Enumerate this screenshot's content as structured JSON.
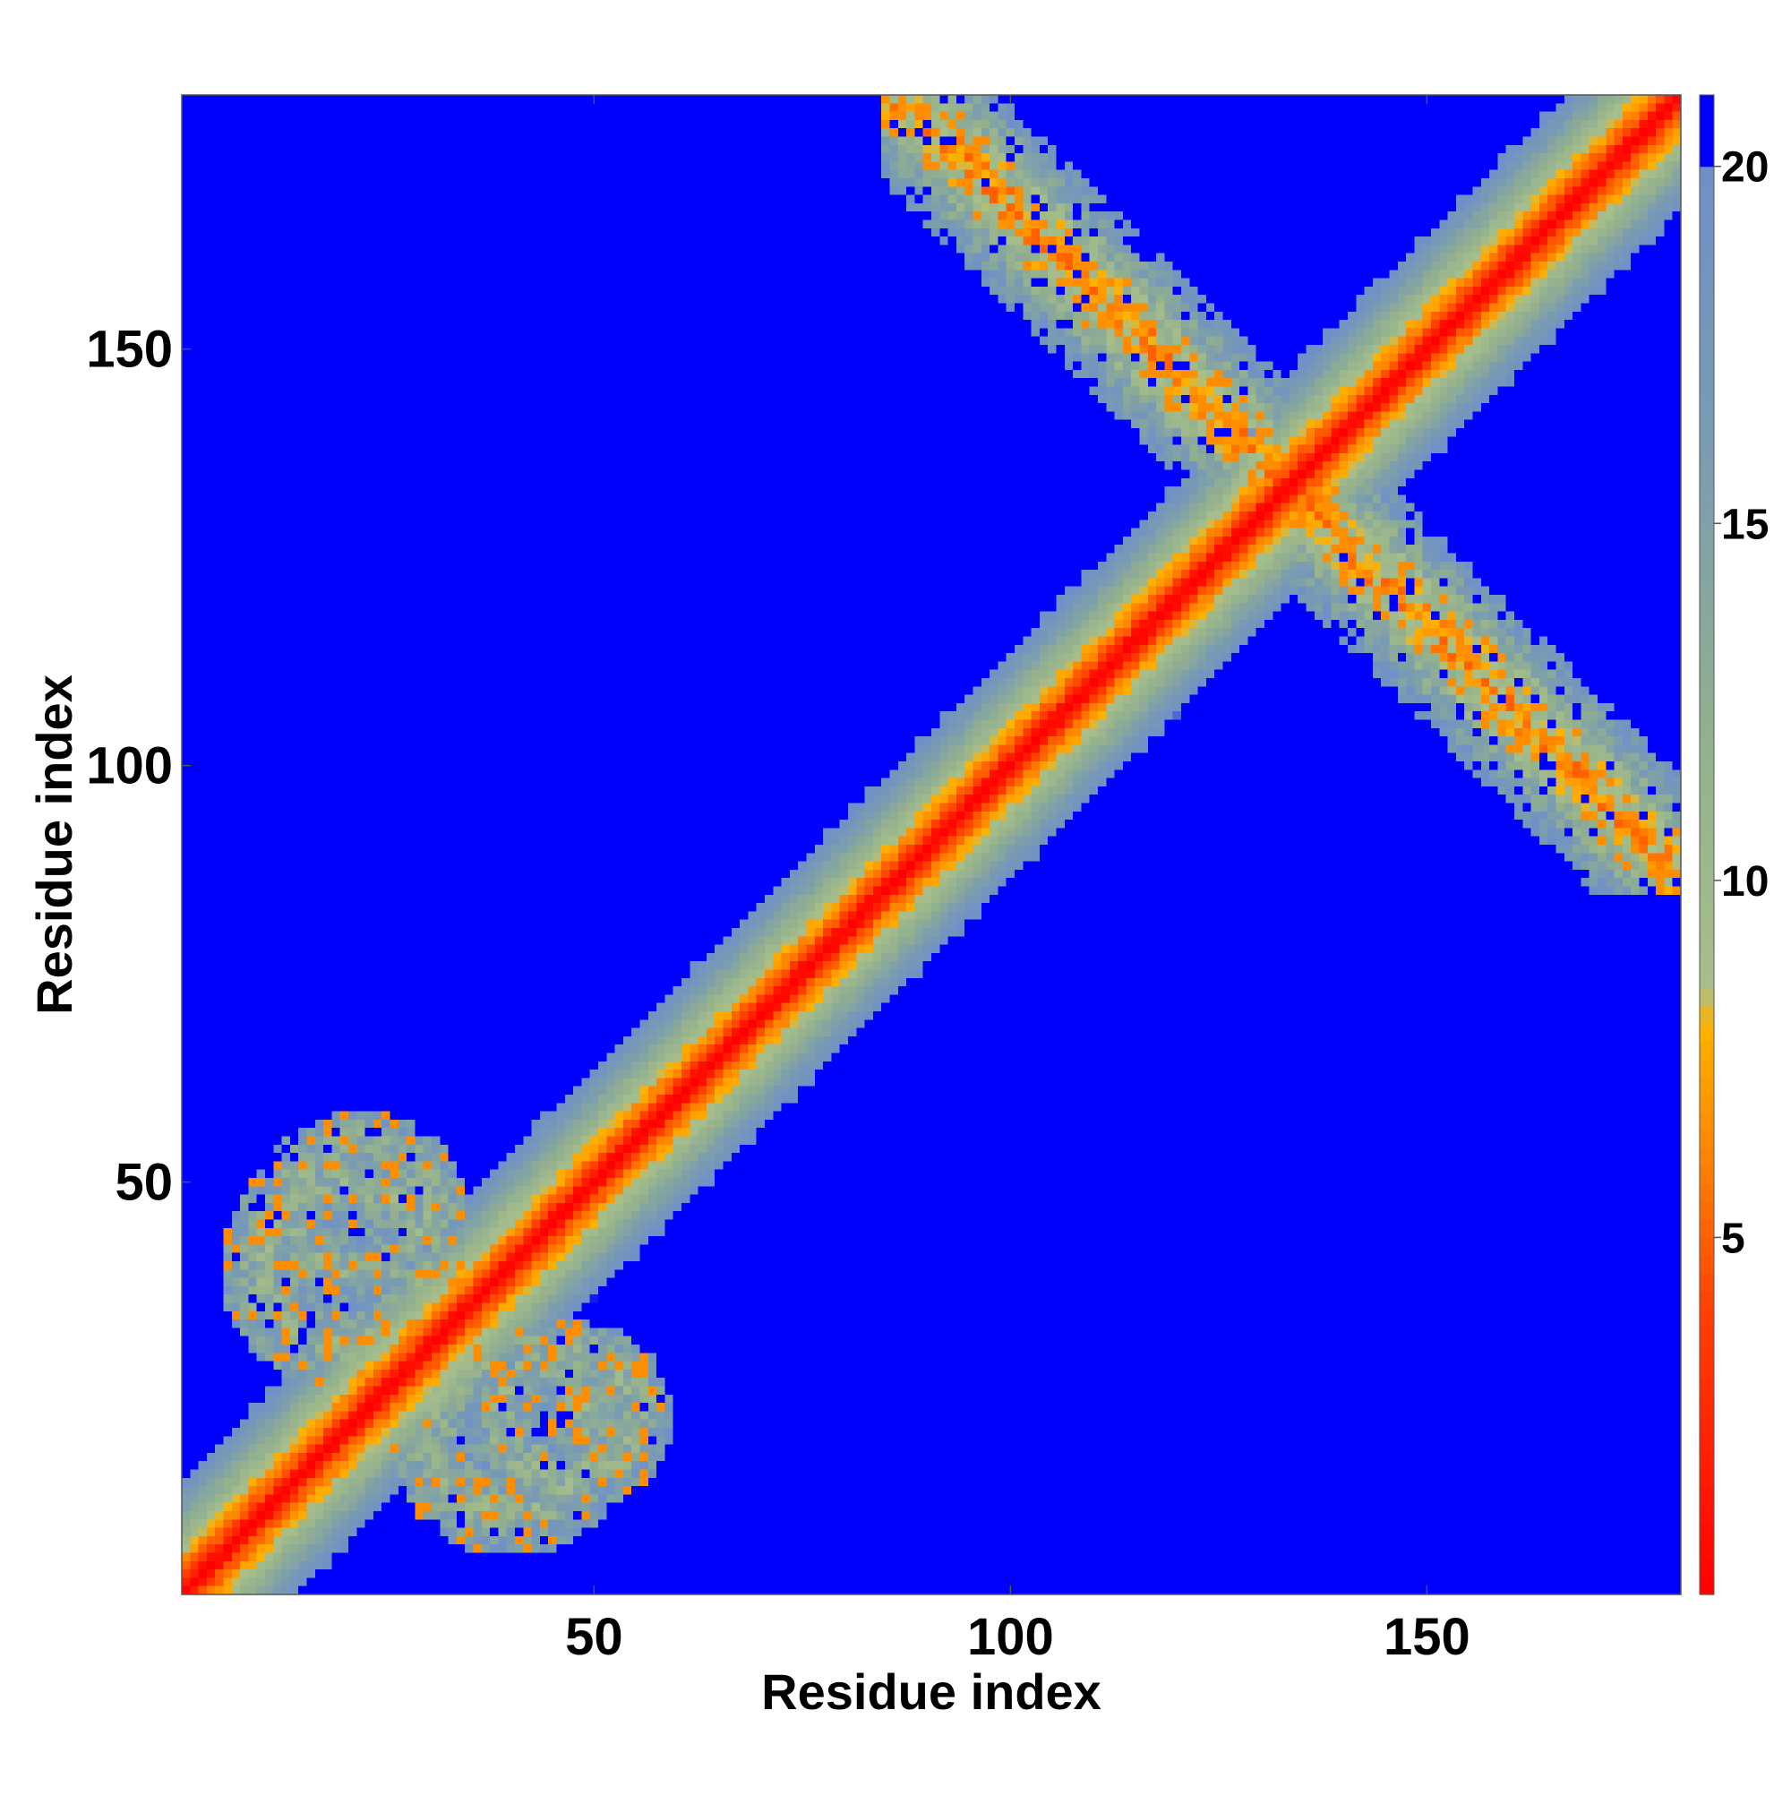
{
  "chart_data": {
    "type": "heatmap",
    "title": "",
    "xlabel": "Residue index",
    "ylabel": "Residue index",
    "n_residues": 180,
    "xlim": [
      1,
      180
    ],
    "ylim": [
      1,
      180
    ],
    "x_ticks": [
      {
        "value": 50,
        "label": "50"
      },
      {
        "value": 100,
        "label": "100"
      },
      {
        "value": 150,
        "label": "150"
      }
    ],
    "y_ticks": [
      {
        "value": 50,
        "label": "50"
      },
      {
        "value": 100,
        "label": "100"
      },
      {
        "value": 150,
        "label": "150"
      }
    ],
    "colorbar": {
      "range": [
        0,
        21
      ],
      "ticks": [
        {
          "value": 5,
          "label": "5"
        },
        {
          "value": 10,
          "label": "10"
        },
        {
          "value": 15,
          "label": "15"
        },
        {
          "value": 20,
          "label": "20"
        }
      ],
      "color_stops": [
        {
          "value": 0,
          "color": "#ff0000"
        },
        {
          "value": 4,
          "color": "#ff4000"
        },
        {
          "value": 6,
          "color": "#ff8000"
        },
        {
          "value": 8,
          "color": "#ffb300"
        },
        {
          "value": 8.5,
          "color": "#a8bf8a"
        },
        {
          "value": 12,
          "color": "#93b08e"
        },
        {
          "value": 16,
          "color": "#7a9cb0"
        },
        {
          "value": 19.99,
          "color": "#6f90c8"
        },
        {
          "value": 20,
          "color": "#0000ff"
        },
        {
          "value": 21,
          "color": "#0000ff"
        }
      ]
    },
    "background_value": 21,
    "contact_regions": [
      {
        "name": "main-diagonal",
        "kind": "diagonal",
        "half_width_residues": 14
      },
      {
        "name": "antiparallel-pair-1",
        "kind": "antidiagonal",
        "x_range": [
          85,
          180
        ],
        "sum": 267
      },
      {
        "name": "n-terminal-domain-1",
        "kind": "blob",
        "center": [
          20,
          40
        ],
        "size": [
          26,
          26
        ]
      },
      {
        "name": "n-terminal-domain-2",
        "kind": "blob",
        "center": [
          47,
          22
        ],
        "size": [
          22,
          20
        ]
      }
    ]
  }
}
